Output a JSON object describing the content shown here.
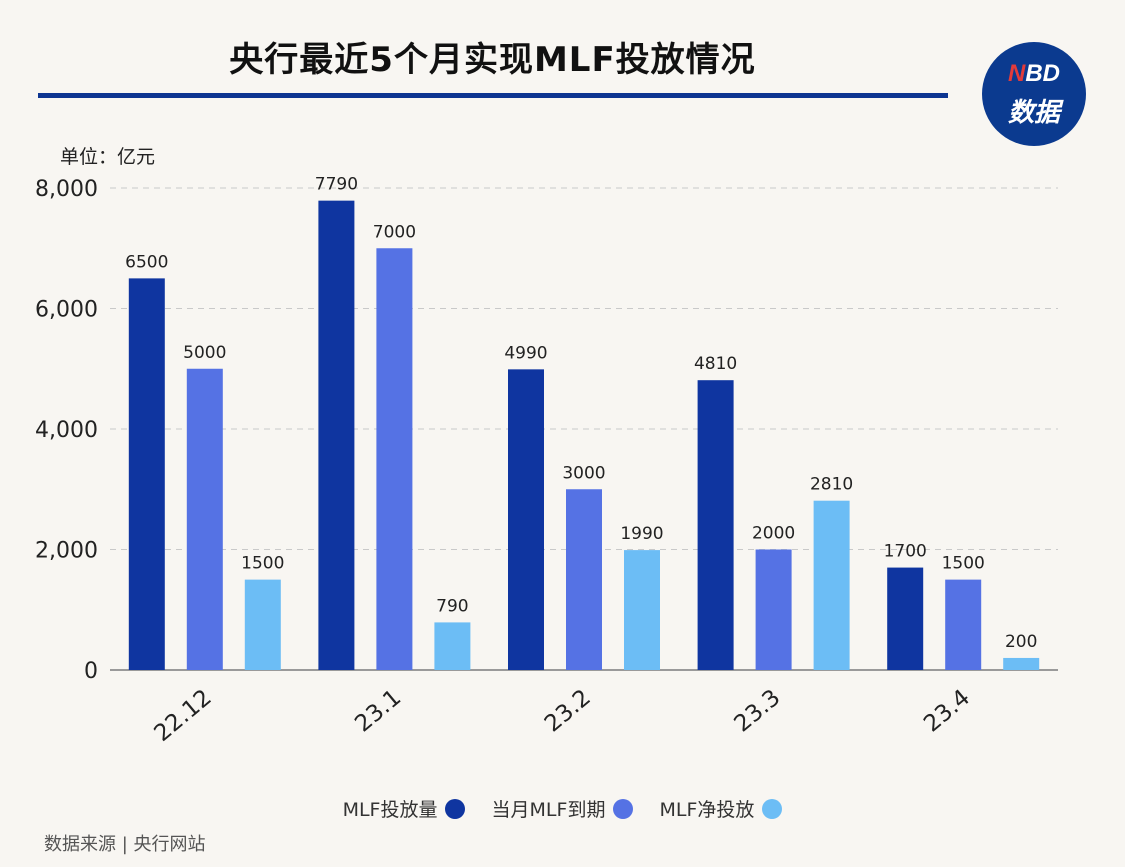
{
  "title": "央行最近5个月实现MLF投放情况",
  "logo": {
    "top_n": "N",
    "top_rest": "BD",
    "bottom": "数据"
  },
  "unit_label": "单位：亿元",
  "source": "数据来源 | 央行网站",
  "colors": {
    "title_rule": "#0d3591",
    "series": [
      "#0f35a0",
      "#5572e4",
      "#6cbdf5"
    ]
  },
  "chart_data": {
    "type": "bar",
    "categories": [
      "22.12",
      "23.1",
      "23.2",
      "23.3",
      "23.4"
    ],
    "series": [
      {
        "name": "MLF投放量",
        "values": [
          6500,
          7790,
          4990,
          4810,
          1700
        ]
      },
      {
        "name": "当月MLF到期",
        "values": [
          5000,
          7000,
          3000,
          2000,
          1500
        ]
      },
      {
        "name": "MLF净投放",
        "values": [
          1500,
          790,
          1990,
          2810,
          200
        ]
      }
    ],
    "ylim": [
      0,
      8000
    ],
    "yticks": [
      {
        "value": 0,
        "label": "0"
      },
      {
        "value": 2000,
        "label": "2,000"
      },
      {
        "value": 4000,
        "label": "4,000"
      },
      {
        "value": 6000,
        "label": "6,000"
      },
      {
        "value": 8000,
        "label": "8,000"
      }
    ],
    "grid": true,
    "legend_position": "bottom"
  }
}
